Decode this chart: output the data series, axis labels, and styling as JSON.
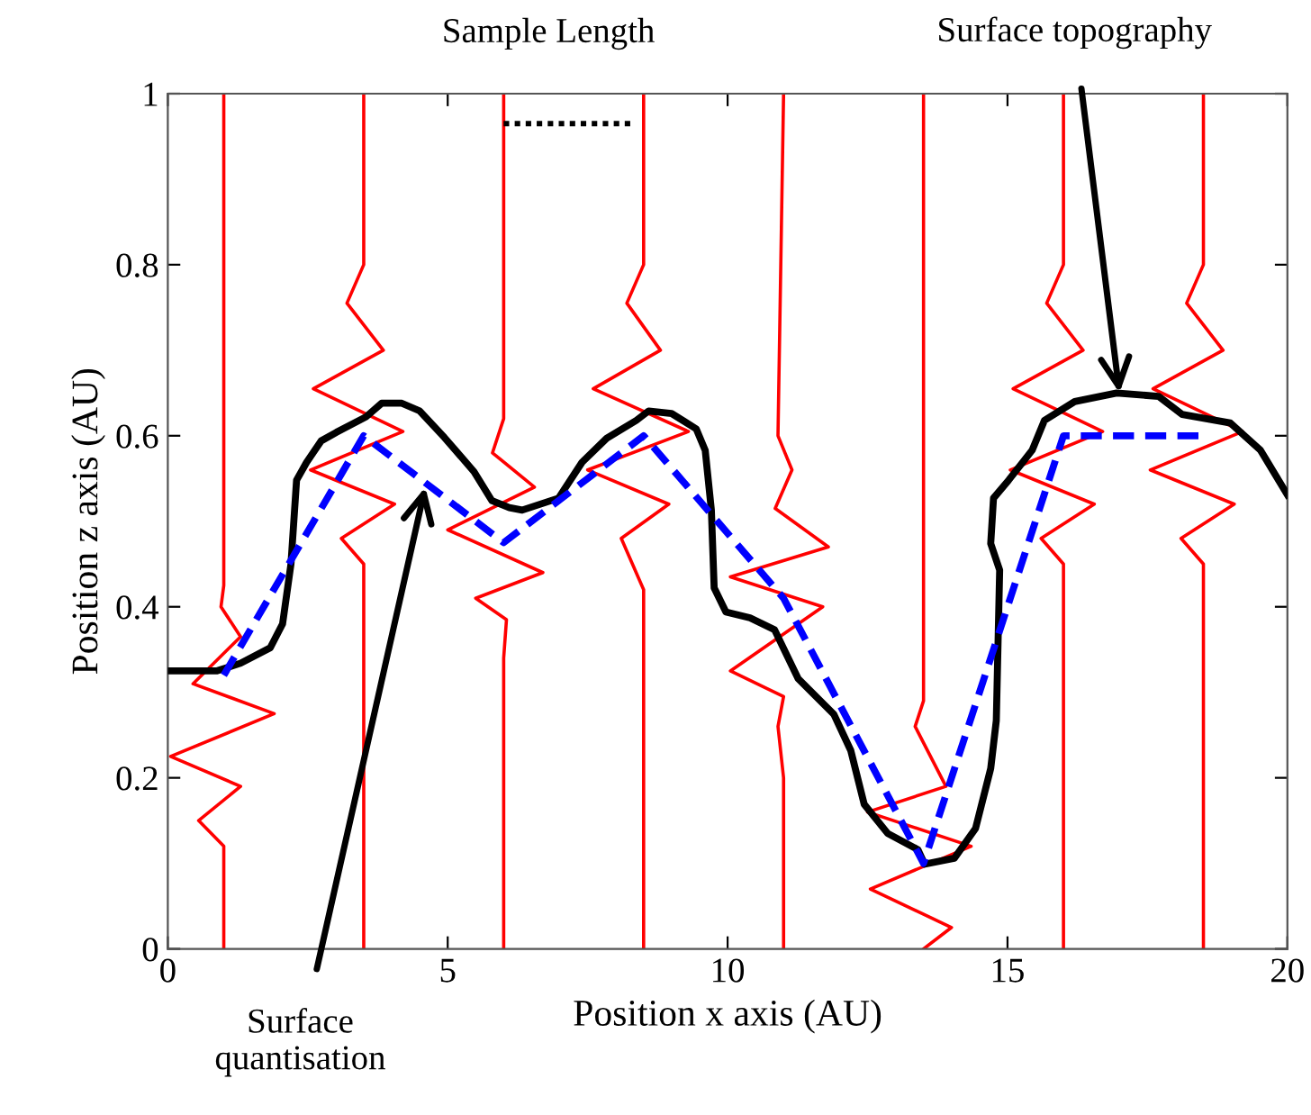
{
  "chart_data": {
    "type": "line",
    "xlabel": "Position x axis (AU)",
    "ylabel": "Position z axis (AU)",
    "xlim": [
      0,
      20
    ],
    "ylim": [
      0,
      1
    ],
    "xticks": [
      0,
      5,
      10,
      15,
      20
    ],
    "yticks": [
      0,
      0.2,
      0.4,
      0.6,
      0.8,
      1
    ],
    "grid": false,
    "marker": "none",
    "series": [
      {
        "color": "#ff0000",
        "line_style": "solid",
        "x": [
          1,
          1,
          0.95,
          1.3,
          0.45,
          1.9,
          0.05,
          1.3,
          0.55,
          1.0,
          1
        ],
        "values": [
          1,
          0.425,
          0.4,
          0.365,
          0.31,
          0.275,
          0.225,
          0.19,
          0.15,
          0.12,
          0
        ]
      },
      {
        "color": "#ff0000",
        "line_style": "solid",
        "x": [
          3.5,
          3.5,
          3.2,
          3.85,
          2.6,
          4.2,
          2.55,
          4.05,
          3.1,
          3.5,
          3.5
        ],
        "values": [
          1,
          0.8,
          0.755,
          0.7,
          0.655,
          0.605,
          0.56,
          0.52,
          0.48,
          0.45,
          0
        ]
      },
      {
        "color": "#ff0000",
        "line_style": "solid",
        "x": [
          6,
          6,
          5.8,
          6.55,
          5.0,
          6.7,
          5.5,
          6.05,
          6,
          6
        ],
        "values": [
          1,
          0.62,
          0.58,
          0.54,
          0.49,
          0.44,
          0.41,
          0.385,
          0.34,
          0
        ]
      },
      {
        "color": "#ff0000",
        "line_style": "solid",
        "x": [
          8.5,
          8.5,
          8.2,
          8.8,
          7.6,
          9.3,
          7.5,
          8.95,
          8.1,
          8.5,
          8.5
        ],
        "values": [
          1,
          0.8,
          0.755,
          0.7,
          0.655,
          0.605,
          0.56,
          0.52,
          0.48,
          0.42,
          0
        ]
      },
      {
        "color": "#ff0000",
        "line_style": "solid",
        "x": [
          11,
          10.9,
          11.15,
          10.85,
          11.8,
          10.05,
          11.7,
          10.05,
          11.0,
          10.9,
          11,
          11
        ],
        "values": [
          1,
          0.6,
          0.56,
          0.515,
          0.47,
          0.435,
          0.4,
          0.325,
          0.295,
          0.26,
          0.2,
          0
        ]
      },
      {
        "color": "#ff0000",
        "line_style": "solid",
        "x": [
          13.5,
          13.5,
          13.35,
          13.9,
          12.5,
          14.35,
          12.55,
          14.0,
          13.5
        ],
        "values": [
          1,
          0.29,
          0.26,
          0.19,
          0.16,
          0.12,
          0.07,
          0.025,
          0
        ]
      },
      {
        "color": "#ff0000",
        "line_style": "solid",
        "x": [
          16,
          16,
          15.7,
          16.35,
          15.1,
          16.7,
          15.05,
          16.55,
          15.6,
          16,
          16
        ],
        "values": [
          1,
          0.8,
          0.755,
          0.7,
          0.655,
          0.605,
          0.56,
          0.52,
          0.48,
          0.45,
          0
        ]
      },
      {
        "color": "#ff0000",
        "line_style": "solid",
        "x": [
          18.5,
          18.5,
          18.2,
          18.85,
          17.6,
          19.2,
          17.55,
          19.05,
          18.1,
          18.5,
          18.5
        ],
        "values": [
          1,
          0.8,
          0.755,
          0.7,
          0.655,
          0.605,
          0.56,
          0.52,
          0.48,
          0.45,
          0
        ]
      },
      {
        "color": "#000000",
        "line_style": "solid",
        "x": [
          0,
          0.87,
          1.3,
          1.83,
          2.05,
          2.2,
          2.3,
          2.48,
          2.74,
          3.01,
          3.54,
          3.82,
          4.18,
          4.5,
          4.94,
          5.47,
          5.79,
          6.1,
          6.33,
          6.98,
          7.4,
          7.84,
          8.37,
          8.59,
          9.0,
          9.44,
          9.6,
          9.71,
          9.76,
          9.97,
          10.4,
          10.84,
          11.26,
          11.9,
          12.2,
          12.44,
          12.86,
          13.4,
          13.52,
          14.05,
          14.43,
          14.7,
          14.8,
          14.86,
          14.7,
          14.75,
          15.02,
          15.44,
          15.66,
          16.2,
          16.95,
          17.7,
          18.12,
          18.98,
          19.52,
          20
        ],
        "values": [
          0.325,
          0.325,
          0.334,
          0.352,
          0.38,
          0.45,
          0.548,
          0.569,
          0.594,
          0.604,
          0.622,
          0.638,
          0.638,
          0.629,
          0.598,
          0.558,
          0.524,
          0.516,
          0.513,
          0.527,
          0.569,
          0.597,
          0.618,
          0.629,
          0.626,
          0.608,
          0.583,
          0.513,
          0.422,
          0.394,
          0.387,
          0.373,
          0.316,
          0.274,
          0.232,
          0.169,
          0.135,
          0.116,
          0.099,
          0.106,
          0.141,
          0.211,
          0.267,
          0.443,
          0.474,
          0.527,
          0.548,
          0.583,
          0.618,
          0.64,
          0.65,
          0.646,
          0.625,
          0.615,
          0.583,
          0.531
        ]
      },
      {
        "color": "#0000ff",
        "line_style": "dashed",
        "x": [
          1,
          3.5,
          6,
          8.5,
          11,
          13.5,
          16,
          18.5
        ],
        "values": [
          0.32,
          0.6,
          0.475,
          0.6,
          0.41,
          0.1,
          0.6,
          0.6
        ]
      },
      {
        "color": "#000000",
        "line_style": "dotted",
        "x": [
          6,
          8.3
        ],
        "values": [
          0.965,
          0.965
        ]
      }
    ],
    "annotations": [
      "Sample Length",
      {
        "text": "Surface topography",
        "x": 17,
        "y": 0.65
      },
      {
        "text": "Surface\nquantisation",
        "x": 4.6,
        "y": 0.54
      }
    ]
  }
}
